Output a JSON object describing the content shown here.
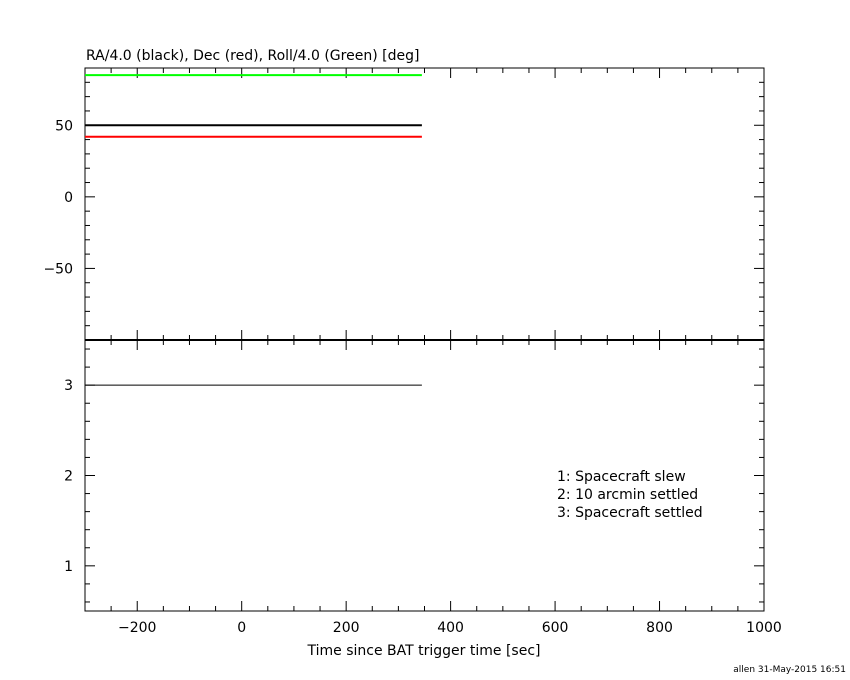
{
  "chart_data": [
    {
      "type": "line",
      "title": "RA/4.0 (black), Dec (red), Roll/4.0 (Green) [deg]",
      "xlim": [
        -300,
        1000
      ],
      "ylim": [
        -100,
        90
      ],
      "yticks": [
        -50,
        0,
        50
      ],
      "series": [
        {
          "name": "RA/4.0 (black)",
          "color": "#000000",
          "x": [
            -300,
            345
          ],
          "y": [
            50,
            50
          ]
        },
        {
          "name": "Dec (red)",
          "color": "#ff0000",
          "x": [
            -300,
            345
          ],
          "y": [
            42,
            42
          ]
        },
        {
          "name": "Roll/4.0 (Green)",
          "color": "#00ff00",
          "x": [
            -300,
            345
          ],
          "y": [
            85,
            85
          ]
        }
      ]
    },
    {
      "type": "line",
      "xlabel": "Time since BAT trigger time [sec]",
      "xlim": [
        -300,
        1000
      ],
      "ylim": [
        0.5,
        3.5
      ],
      "xticks": [
        -200,
        0,
        200,
        400,
        600,
        800,
        1000
      ],
      "yticks": [
        1,
        2,
        3
      ],
      "series": [
        {
          "color": "#000000",
          "x": [
            -300,
            345
          ],
          "y": [
            3,
            3
          ]
        }
      ],
      "annotations": [
        "1: Spacecraft slew",
        "2: 10 arcmin settled",
        "3: Spacecraft settled"
      ]
    }
  ],
  "footer": "allen 31-May-2015 16:51"
}
